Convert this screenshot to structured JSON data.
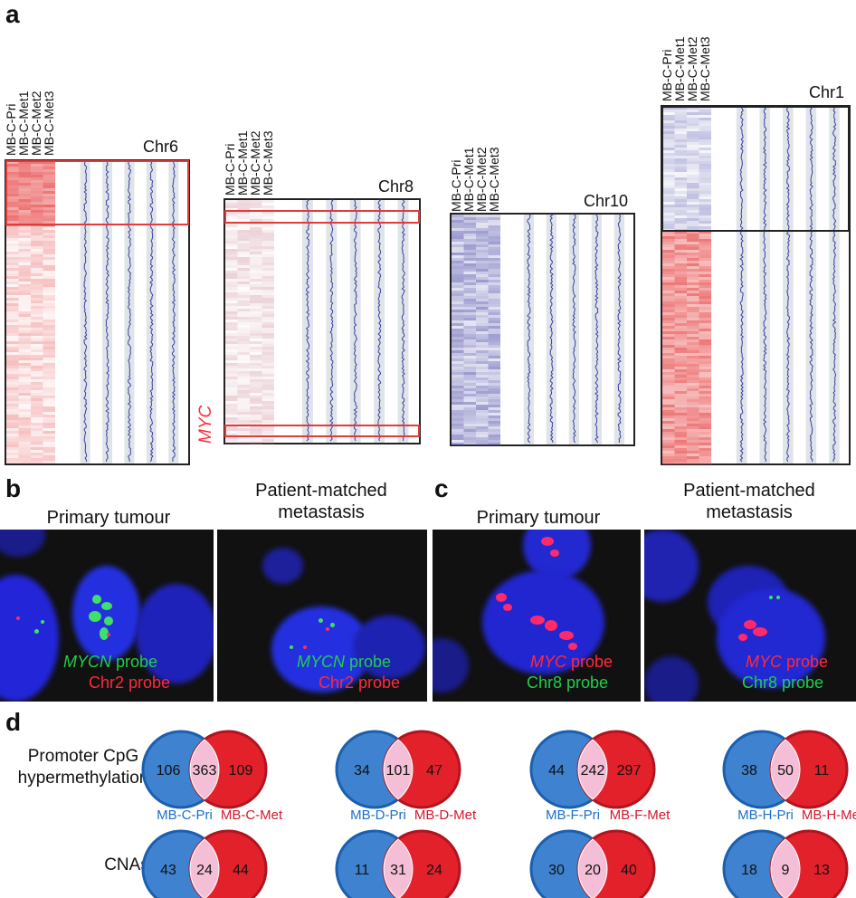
{
  "panels": {
    "a": "a",
    "b": "b",
    "c": "c",
    "d": "d"
  },
  "sample_labels": [
    "MB-C-Pri",
    "MB-C-Met1",
    "MB-C-Met2",
    "MB-C-Met3"
  ],
  "chromosomes": [
    {
      "name": "Chr6"
    },
    {
      "name": "Chr8",
      "gene": "MYC"
    },
    {
      "name": "Chr10"
    },
    {
      "name": "Chr1"
    }
  ],
  "fish": {
    "b": {
      "left_title": "Primary tumour",
      "right_title": "Patient-matched metastasis",
      "left_probe1_gene": "MYCN",
      "left_probe1_word": "probe",
      "left_probe2": "Chr2 probe",
      "right_probe1_gene": "MYCN",
      "right_probe1_word": "probe",
      "right_probe2": "Chr2 probe"
    },
    "c": {
      "left_title": "Primary tumour",
      "right_title": "Patient-matched metastasis",
      "left_probe1_gene": "MYC",
      "left_probe1_word": "probe",
      "left_probe2": "Chr8 probe",
      "right_probe1_gene": "MYC",
      "right_probe1_word": "probe",
      "right_probe2": "Chr8 probe"
    }
  },
  "venn": {
    "row_labels": [
      "Promoter CpG hypermethylation",
      "CNAs"
    ],
    "patients": [
      {
        "pri_label": "MB-C-Pri",
        "met_label": "MB-C-Met",
        "meth": [
          "106",
          "363",
          "109"
        ],
        "cna": [
          "43",
          "24",
          "44"
        ]
      },
      {
        "pri_label": "MB-D-Pri",
        "met_label": "MB-D-Met",
        "meth": [
          "34",
          "101",
          "47"
        ],
        "cna": [
          "11",
          "31",
          "24"
        ]
      },
      {
        "pri_label": "MB-F-Pri",
        "met_label": "MB-F-Met",
        "meth": [
          "44",
          "242",
          "297"
        ],
        "cna": [
          "30",
          "20",
          "40"
        ]
      },
      {
        "pri_label": "MB-H-Pri",
        "met_label": "MB-H-Met",
        "meth": [
          "38",
          "50",
          "11"
        ],
        "cna": [
          "18",
          "9",
          "13"
        ]
      }
    ]
  },
  "colors": {
    "pri": "#3f82cf",
    "met": "#e3212b",
    "overlap": "#f4bfd6",
    "gain": "#e84a4a",
    "loss": "#4a4aa8"
  }
}
